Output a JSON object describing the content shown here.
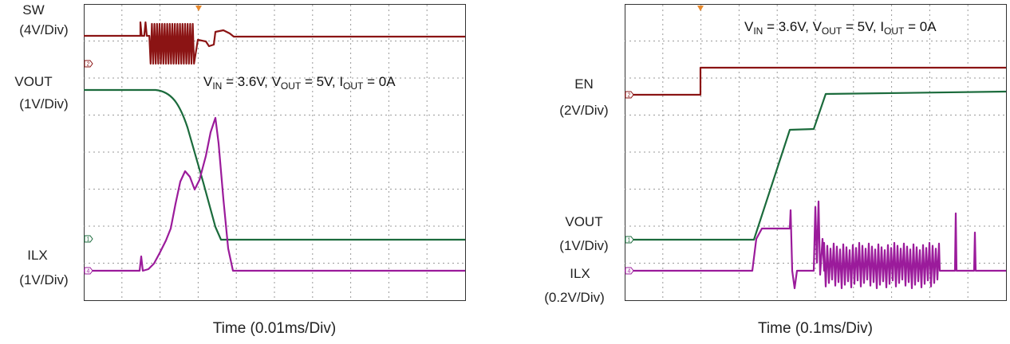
{
  "left": {
    "labels": [
      "SW",
      "(4V/Div)",
      "VOUT",
      "(1V/Div)",
      "ILX",
      "(1V/Div)"
    ],
    "markers": [
      "2",
      "1",
      "4"
    ],
    "annotation": [
      "V",
      "IN",
      " = 3.6V, V",
      "OUT",
      " = 5V, I",
      "OUT",
      " = 0A"
    ],
    "x_label": "Time (0.01ms/Div)"
  },
  "right": {
    "labels": [
      "EN",
      "(2V/Div)",
      "VOUT",
      "(1V/Div)",
      "ILX",
      "(0.2V/Div)"
    ],
    "markers": [
      "2",
      "1",
      "4"
    ],
    "annotation": [
      "V",
      "IN",
      " = 3.6V, V",
      "OUT",
      " = 5V, I",
      "OUT",
      " = 0A"
    ],
    "x_label": "Time (0.1ms/Div)"
  }
}
